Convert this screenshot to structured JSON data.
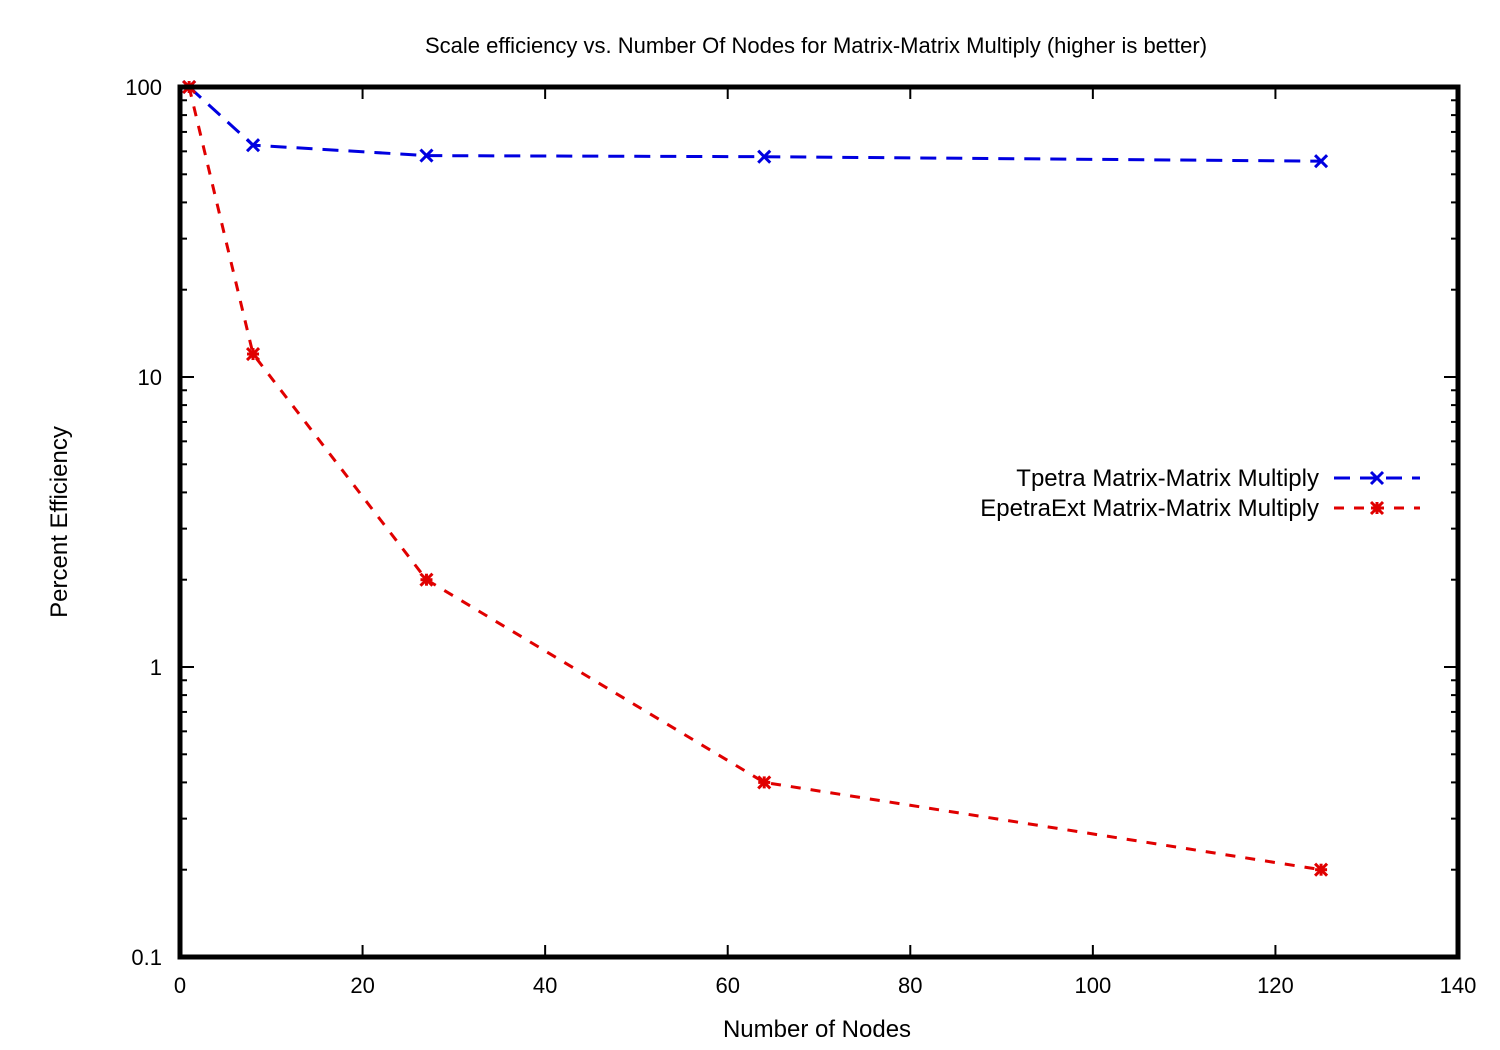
{
  "chart_data": {
    "type": "line",
    "title": "Scale efficiency vs. Number Of Nodes for Matrix-Matrix Multiply (higher is better)",
    "xlabel": "Number of Nodes",
    "ylabel": "Percent Efficiency",
    "xlim": [
      0,
      140
    ],
    "ylim": [
      0.1,
      100
    ],
    "yscale": "log",
    "xticks": [
      0,
      20,
      40,
      60,
      80,
      100,
      120,
      140
    ],
    "yticks": [
      0.1,
      1,
      10,
      100
    ],
    "ytick_labels": [
      "0.1",
      "1",
      "10",
      "100"
    ],
    "grid": false,
    "legend_position": "right-center",
    "series": [
      {
        "name": "Tpetra Matrix-Matrix Multiply",
        "color": "#0000e0",
        "marker": "x",
        "x": [
          1,
          8,
          27,
          64,
          125
        ],
        "y": [
          100,
          63,
          58,
          57.5,
          55.5
        ]
      },
      {
        "name": "EpetraExt Matrix-Matrix Multiply",
        "color": "#e00000",
        "marker": "star",
        "x": [
          1,
          8,
          27,
          64,
          125
        ],
        "y": [
          100,
          12,
          2,
          0.4,
          0.2
        ]
      }
    ]
  }
}
